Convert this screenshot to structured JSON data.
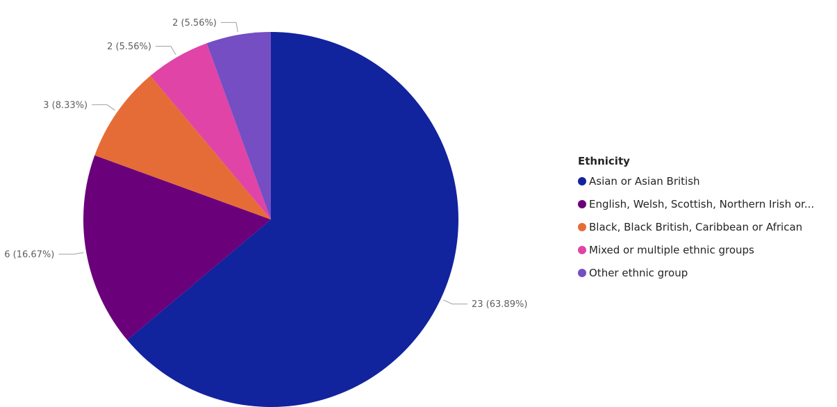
{
  "chart_data": {
    "type": "pie",
    "title": "",
    "legend": {
      "title": "Ethnicity",
      "placement": "right"
    },
    "slices": [
      {
        "label": "Asian or Asian British",
        "value": 23,
        "percent": 63.89,
        "data_label": "23 (63.89%)",
        "color": "#12239e"
      },
      {
        "label": "English, Welsh, Scottish, Northern Irish or...",
        "value": 6,
        "percent": 16.67,
        "data_label": "6 (16.67%)",
        "color": "#6b007b"
      },
      {
        "label": "Black, Black British, Caribbean or African",
        "value": 3,
        "percent": 8.33,
        "data_label": "3 (8.33%)",
        "color": "#e66c37"
      },
      {
        "label": "Mixed or multiple ethnic groups",
        "value": 2,
        "percent": 5.56,
        "data_label": "2 (5.56%)",
        "color": "#e044a7"
      },
      {
        "label": "Other ethnic group",
        "value": 2,
        "percent": 5.56,
        "data_label": "2 (5.56%)",
        "color": "#744ec2"
      }
    ]
  }
}
